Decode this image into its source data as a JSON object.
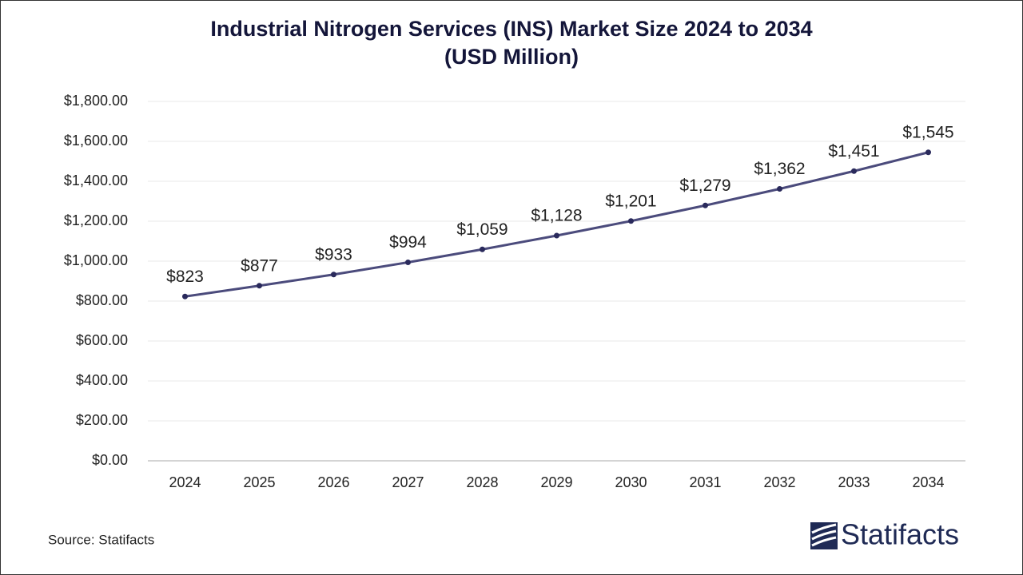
{
  "chart_data": {
    "type": "line",
    "title": [
      "Industrial Nitrogen Services (INS) Market Size 2024 to 2034",
      "(USD Million)"
    ],
    "categories": [
      "2024",
      "2025",
      "2026",
      "2027",
      "2028",
      "2029",
      "2030",
      "2031",
      "2032",
      "2033",
      "2034"
    ],
    "values": [
      823,
      877,
      933,
      994,
      1059,
      1128,
      1201,
      1279,
      1362,
      1451,
      1545
    ],
    "value_labels": [
      "$823",
      "$877",
      "$933",
      "$994",
      "$1,059",
      "$1,128",
      "$1,201",
      "$1,279",
      "$1,362",
      "$1,451",
      "$1,545"
    ],
    "color": "#4b4b7c",
    "marker_color": "#2a2a5c",
    "ylim": [
      0,
      1800
    ],
    "yticks": [
      {
        "value": 0,
        "label": "$0.00"
      },
      {
        "value": 200,
        "label": "$200.00"
      },
      {
        "value": 400,
        "label": "$400.00"
      },
      {
        "value": 600,
        "label": "$600.00"
      },
      {
        "value": 800,
        "label": "$800.00"
      },
      {
        "value": 1000,
        "label": "$1,000.00"
      },
      {
        "value": 1200,
        "label": "$1,200.00"
      },
      {
        "value": 1400,
        "label": "$1,400.00"
      },
      {
        "value": 1600,
        "label": "$1,600.00"
      },
      {
        "value": 1800,
        "label": "$1,800.00"
      }
    ],
    "grid": true,
    "source": "Source: Statifacts",
    "logo": "Statifacts"
  }
}
